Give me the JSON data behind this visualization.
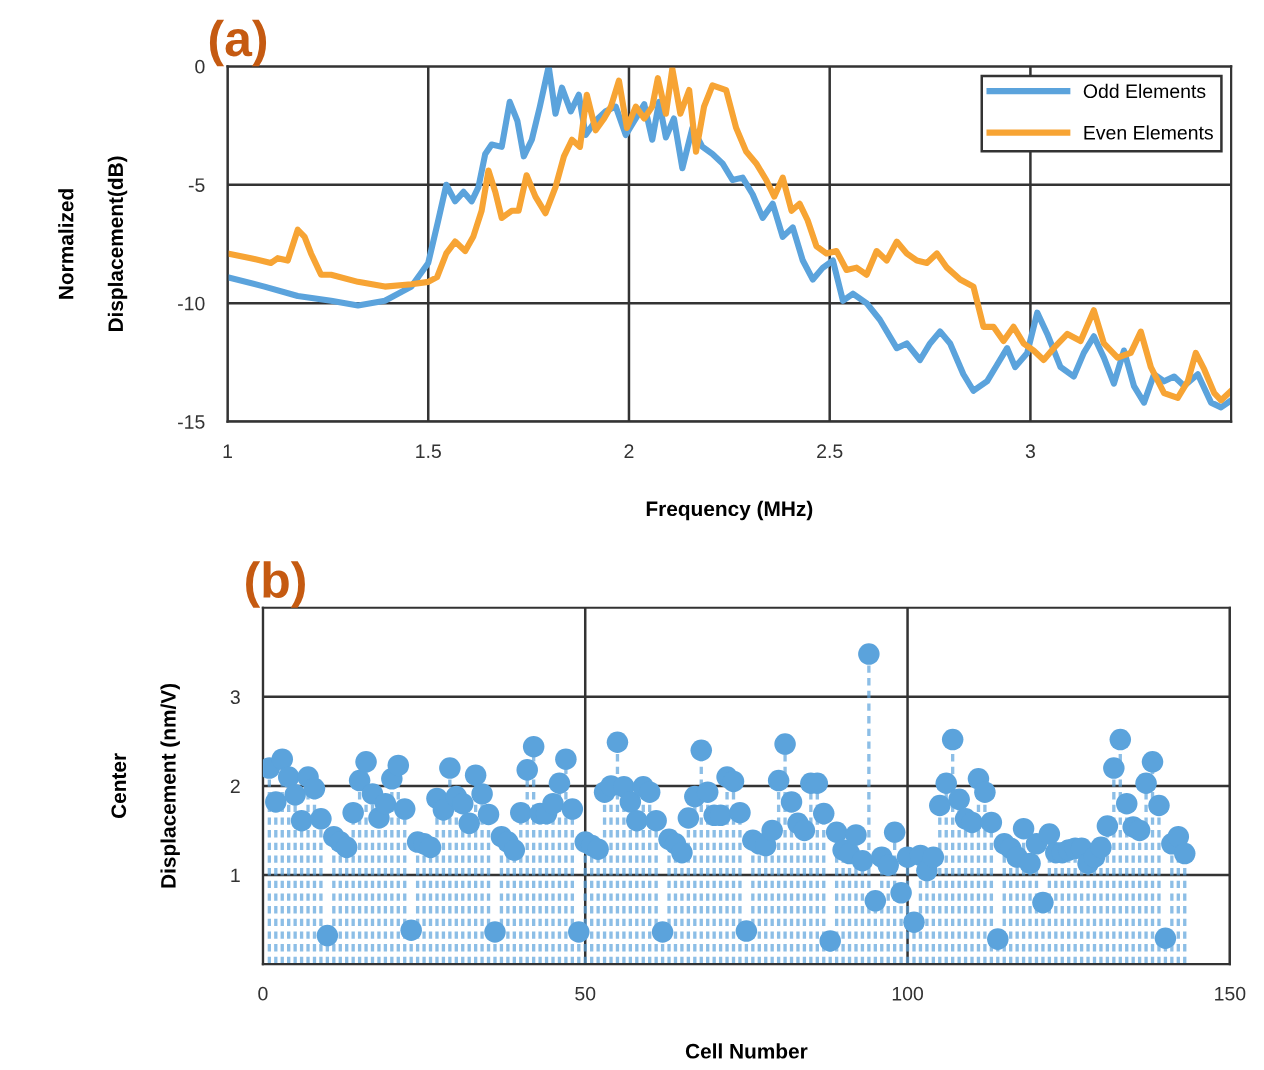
{
  "chart_data": [
    {
      "type": "line",
      "title": "(a)",
      "xlabel": "Frequency (MHz)",
      "ylabel": "Normalized\nDisplacement(dB)",
      "xlim": [
        1,
        3.5
      ],
      "ylim": [
        -15,
        0
      ],
      "xticks": [
        1,
        1.5,
        2,
        2.5,
        3
      ],
      "yticks": [
        0,
        -5,
        -10,
        -15
      ],
      "grid": true,
      "legend": "top right",
      "marker": "none",
      "line_style": "solid",
      "series": [
        {
          "name": "Odd Elements",
          "color": "#5ba3dc",
          "x": [
            1.0,
            1.092,
            1.175,
            1.258,
            1.325,
            1.392,
            1.458,
            1.5,
            1.525,
            1.545,
            1.567,
            1.588,
            1.608,
            1.625,
            1.642,
            1.658,
            1.683,
            1.703,
            1.722,
            1.738,
            1.758,
            1.778,
            1.8,
            1.817,
            1.833,
            1.855,
            1.875,
            1.892,
            1.917,
            1.942,
            1.967,
            1.992,
            2.017,
            2.038,
            2.058,
            2.075,
            2.092,
            2.112,
            2.133,
            2.158,
            2.183,
            2.208,
            2.233,
            2.258,
            2.283,
            2.308,
            2.333,
            2.358,
            2.383,
            2.408,
            2.433,
            2.458,
            2.483,
            2.508,
            2.533,
            2.558,
            2.592,
            2.625,
            2.667,
            2.692,
            2.725,
            2.75,
            2.775,
            2.8,
            2.833,
            2.858,
            2.892,
            2.917,
            2.942,
            2.962,
            2.992,
            3.017,
            3.042,
            3.075,
            3.108,
            3.133,
            3.158,
            3.183,
            3.208,
            3.233,
            3.258,
            3.283,
            3.308,
            3.333,
            3.358,
            3.383,
            3.417,
            3.45,
            3.475,
            3.5
          ],
          "values": [
            -8.9,
            -9.3,
            -9.7,
            -9.9,
            -10.1,
            -9.9,
            -9.3,
            -8.3,
            -6.5,
            -5.0,
            -5.7,
            -5.3,
            -5.7,
            -5.1,
            -3.7,
            -3.3,
            -3.4,
            -1.5,
            -2.3,
            -3.8,
            -3.1,
            -1.7,
            0.0,
            -2.0,
            -0.9,
            -1.9,
            -1.2,
            -2.9,
            -2.3,
            -1.9,
            -1.7,
            -2.9,
            -2.2,
            -1.6,
            -3.1,
            -1.5,
            -3.0,
            -2.2,
            -4.3,
            -2.6,
            -3.4,
            -3.7,
            -4.1,
            -4.8,
            -4.7,
            -5.4,
            -6.4,
            -5.8,
            -7.2,
            -6.8,
            -8.2,
            -9.0,
            -8.5,
            -8.2,
            -9.9,
            -9.6,
            -10.0,
            -10.7,
            -11.9,
            -11.7,
            -12.4,
            -11.7,
            -11.2,
            -11.7,
            -13.0,
            -13.7,
            -13.3,
            -12.6,
            -11.9,
            -12.7,
            -12.1,
            -10.4,
            -11.3,
            -12.7,
            -13.1,
            -12.1,
            -11.4,
            -12.3,
            -13.4,
            -12.0,
            -13.5,
            -14.2,
            -13.0,
            -13.3,
            -13.1,
            -13.5,
            -13.0,
            -14.2,
            -14.4,
            -14.1
          ]
        },
        {
          "name": "Even Elements",
          "color": "#f7a434",
          "x": [
            1.0,
            1.058,
            1.108,
            1.125,
            1.15,
            1.175,
            1.192,
            1.208,
            1.233,
            1.258,
            1.325,
            1.392,
            1.458,
            1.5,
            1.522,
            1.545,
            1.567,
            1.592,
            1.612,
            1.633,
            1.65,
            1.667,
            1.683,
            1.708,
            1.725,
            1.745,
            1.767,
            1.792,
            1.817,
            1.838,
            1.858,
            1.878,
            1.895,
            1.917,
            1.938,
            1.955,
            1.975,
            1.995,
            2.017,
            2.038,
            2.058,
            2.072,
            2.092,
            2.108,
            2.128,
            2.15,
            2.167,
            2.187,
            2.208,
            2.242,
            2.267,
            2.292,
            2.317,
            2.342,
            2.362,
            2.383,
            2.405,
            2.425,
            2.445,
            2.467,
            2.492,
            2.517,
            2.542,
            2.567,
            2.592,
            2.617,
            2.642,
            2.667,
            2.692,
            2.717,
            2.742,
            2.767,
            2.792,
            2.825,
            2.858,
            2.883,
            2.908,
            2.933,
            2.958,
            2.983,
            3.008,
            3.033,
            3.058,
            3.092,
            3.125,
            3.158,
            3.183,
            3.217,
            3.25,
            3.275,
            3.3,
            3.333,
            3.367,
            3.392,
            3.412,
            3.433,
            3.458,
            3.475,
            3.5
          ],
          "values": [
            -7.9,
            -8.1,
            -8.3,
            -8.1,
            -8.2,
            -6.9,
            -7.2,
            -7.9,
            -8.8,
            -8.8,
            -9.1,
            -9.3,
            -9.2,
            -9.1,
            -8.9,
            -7.9,
            -7.4,
            -7.8,
            -7.2,
            -6.1,
            -4.4,
            -5.3,
            -6.4,
            -6.1,
            -6.1,
            -4.6,
            -5.5,
            -6.2,
            -5.1,
            -3.8,
            -3.1,
            -3.4,
            -1.2,
            -2.7,
            -2.2,
            -1.7,
            -0.6,
            -2.6,
            -1.7,
            -2.2,
            -1.7,
            -0.5,
            -2.0,
            -0.1,
            -2.0,
            -1.0,
            -3.6,
            -1.7,
            -0.8,
            -1.0,
            -2.6,
            -3.6,
            -4.1,
            -4.8,
            -5.5,
            -4.7,
            -6.1,
            -5.8,
            -6.5,
            -7.6,
            -7.9,
            -7.8,
            -8.6,
            -8.5,
            -8.8,
            -7.8,
            -8.2,
            -7.4,
            -7.9,
            -8.2,
            -8.3,
            -7.9,
            -8.5,
            -9.0,
            -9.3,
            -11.0,
            -11.0,
            -11.6,
            -11.0,
            -11.7,
            -12.0,
            -12.4,
            -11.9,
            -11.3,
            -11.6,
            -10.3,
            -11.7,
            -12.3,
            -12.1,
            -11.2,
            -12.7,
            -13.8,
            -14.0,
            -13.3,
            -12.1,
            -12.8,
            -13.8,
            -14.1,
            -13.7
          ]
        }
      ]
    },
    {
      "type": "lollipop",
      "title": "(b)",
      "xlabel": "Cell Number",
      "ylabel": "Center\nDisplacement (nm/V)",
      "xlim": [
        0,
        150
      ],
      "ylim": [
        0,
        4
      ],
      "xticks": [
        0,
        50,
        100,
        150
      ],
      "yticks": [
        1,
        2,
        3
      ],
      "grid": true,
      "marker": "circle",
      "line_style": "dashed",
      "series": [
        {
          "color": "#5ba3dc",
          "x": [
            1,
            2,
            3,
            4,
            5,
            6,
            7,
            8,
            9,
            10,
            11,
            12,
            13,
            14,
            15,
            16,
            17,
            18,
            19,
            20,
            21,
            22,
            23,
            24,
            25,
            26,
            27,
            28,
            29,
            30,
            31,
            32,
            33,
            34,
            35,
            36,
            37,
            38,
            39,
            40,
            41,
            42,
            43,
            44,
            45,
            46,
            47,
            48,
            49,
            50,
            51,
            52,
            53,
            54,
            55,
            56,
            57,
            58,
            59,
            60,
            61,
            62,
            63,
            64,
            65,
            66,
            67,
            68,
            69,
            70,
            71,
            72,
            73,
            74,
            75,
            76,
            77,
            78,
            79,
            80,
            81,
            82,
            83,
            84,
            85,
            86,
            87,
            88,
            89,
            90,
            91,
            92,
            93,
            94,
            95,
            96,
            97,
            98,
            99,
            100,
            101,
            102,
            103,
            104,
            105,
            106,
            107,
            108,
            109,
            110,
            111,
            112,
            113,
            114,
            115,
            116,
            117,
            118,
            119,
            120,
            121,
            122,
            123,
            124,
            125,
            126,
            127,
            128,
            129,
            130,
            131,
            132,
            133,
            134,
            135,
            136,
            137,
            138,
            139,
            140,
            141,
            142,
            143
          ],
          "values": [
            2.2,
            1.82,
            2.3,
            2.1,
            1.9,
            1.61,
            2.1,
            1.97,
            1.63,
            0.32,
            1.43,
            1.37,
            1.31,
            1.7,
            2.06,
            2.27,
            1.91,
            1.64,
            1.8,
            2.08,
            2.23,
            1.74,
            0.38,
            1.37,
            1.35,
            1.31,
            1.86,
            1.73,
            2.2,
            1.88,
            1.8,
            1.58,
            2.12,
            1.91,
            1.68,
            0.36,
            1.43,
            1.37,
            1.28,
            1.7,
            2.18,
            2.44,
            1.69,
            1.69,
            1.8,
            2.03,
            2.3,
            1.74,
            0.36,
            1.37,
            1.33,
            1.29,
            1.93,
            2.0,
            2.49,
            1.99,
            1.82,
            1.61,
            1.99,
            1.93,
            1.61,
            0.36,
            1.4,
            1.35,
            1.25,
            1.64,
            1.88,
            2.4,
            1.93,
            1.67,
            1.67,
            2.1,
            2.05,
            1.7,
            0.37,
            1.39,
            1.35,
            1.33,
            1.5,
            2.06,
            2.47,
            1.82,
            1.58,
            1.5,
            2.03,
            2.03,
            1.69,
            0.26,
            1.48,
            1.28,
            1.24,
            1.45,
            1.16,
            3.48,
            0.71,
            1.2,
            1.11,
            1.48,
            0.8,
            1.2,
            0.47,
            1.22,
            1.05,
            1.2,
            1.78,
            2.03,
            2.52,
            1.85,
            1.63,
            1.59,
            2.08,
            1.93,
            1.59,
            0.28,
            1.35,
            1.3,
            1.2,
            1.52,
            1.13,
            1.35,
            0.69,
            1.46,
            1.25,
            1.25,
            1.28,
            1.3,
            1.3,
            1.13,
            1.2,
            1.31,
            1.55,
            2.2,
            2.52,
            1.8,
            1.54,
            1.5,
            2.03,
            2.27,
            1.78,
            0.29,
            1.35,
            1.43,
            1.24
          ]
        }
      ]
    }
  ]
}
